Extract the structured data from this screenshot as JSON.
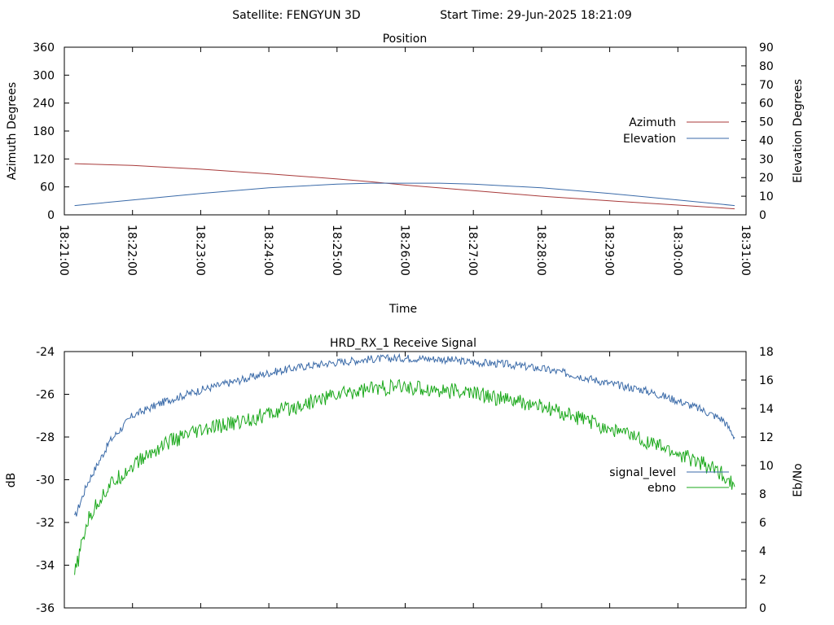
{
  "header": {
    "satellite_text": "Satellite: FENGYUN 3D",
    "start_time_text": "Start Time: 29-Jun-2025 18:21:09"
  },
  "chart_data": [
    {
      "type": "line",
      "title": "Position",
      "xlabel": "Time",
      "ylabel": "Azimuth Degrees",
      "y2label": "Elevation Degrees",
      "x_ticks": [
        "18:21:00",
        "18:22:00",
        "18:23:00",
        "18:24:00",
        "18:25:00",
        "18:26:00",
        "18:27:00",
        "18:28:00",
        "18:29:00",
        "18:30:00",
        "18:31:00"
      ],
      "xlim": [
        "18:21:00",
        "18:31:00"
      ],
      "ylim": [
        0,
        360
      ],
      "y_ticks": [
        0,
        60,
        120,
        180,
        240,
        300,
        360
      ],
      "y2lim": [
        0,
        90
      ],
      "y2_ticks": [
        0,
        10,
        20,
        30,
        40,
        50,
        60,
        70,
        80,
        90
      ],
      "grid": false,
      "legend": "right",
      "series": [
        {
          "name": "Azimuth",
          "axis": "y1",
          "color": "#a83a3a",
          "x": [
            "18:21:09",
            "18:22:00",
            "18:23:00",
            "18:24:00",
            "18:25:00",
            "18:25:30",
            "18:26:00",
            "18:27:00",
            "18:28:00",
            "18:29:00",
            "18:30:00",
            "18:30:50"
          ],
          "y": [
            110,
            106,
            98,
            88,
            77,
            71,
            64,
            52,
            40,
            30,
            21,
            13
          ]
        },
        {
          "name": "Elevation",
          "axis": "y2",
          "color": "#3a6aa8",
          "x": [
            "18:21:09",
            "18:22:00",
            "18:23:00",
            "18:24:00",
            "18:25:00",
            "18:25:30",
            "18:26:00",
            "18:26:30",
            "18:27:00",
            "18:28:00",
            "18:29:00",
            "18:30:00",
            "18:30:50"
          ],
          "y": [
            5,
            8,
            11.5,
            14.5,
            16.5,
            17,
            17,
            17,
            16.5,
            14.5,
            11.5,
            8,
            5
          ]
        }
      ]
    },
    {
      "type": "line",
      "title": "HRD_RX_1 Receive Signal",
      "xlabel": "",
      "ylabel": "dB",
      "y2label": "Eb/No",
      "xlim": [
        "18:21:00",
        "18:31:00"
      ],
      "ylim": [
        -36,
        -24
      ],
      "y_ticks": [
        -36,
        -34,
        -32,
        -30,
        -28,
        -26,
        -24
      ],
      "y2lim": [
        0,
        18
      ],
      "y2_ticks": [
        0,
        2,
        4,
        6,
        8,
        10,
        12,
        14,
        16,
        18
      ],
      "grid": false,
      "legend": "right",
      "series": [
        {
          "name": "signal_level",
          "axis": "y1",
          "color": "#3a6aa8",
          "x": [
            "18:21:09",
            "18:21:20",
            "18:21:30",
            "18:21:40",
            "18:22:00",
            "18:22:30",
            "18:23:00",
            "18:23:30",
            "18:24:00",
            "18:24:30",
            "18:25:00",
            "18:25:30",
            "18:26:00",
            "18:26:30",
            "18:27:00",
            "18:27:30",
            "18:28:00",
            "18:28:30",
            "18:29:00",
            "18:29:30",
            "18:30:00",
            "18:30:20",
            "18:30:40",
            "18:30:50"
          ],
          "y": [
            -31.8,
            -30.2,
            -29.2,
            -28.2,
            -27.0,
            -26.3,
            -25.8,
            -25.4,
            -25.0,
            -24.7,
            -24.5,
            -24.35,
            -24.3,
            -24.35,
            -24.5,
            -24.6,
            -24.8,
            -25.1,
            -25.5,
            -25.8,
            -26.3,
            -26.7,
            -27.2,
            -28.0
          ]
        },
        {
          "name": "ebno",
          "axis": "y2",
          "color": "#1aa81a",
          "x": [
            "18:21:09",
            "18:21:20",
            "18:21:30",
            "18:21:40",
            "18:22:00",
            "18:22:30",
            "18:23:00",
            "18:23:30",
            "18:24:00",
            "18:24:30",
            "18:25:00",
            "18:25:30",
            "18:26:00",
            "18:26:30",
            "18:27:00",
            "18:27:30",
            "18:28:00",
            "18:28:30",
            "18:29:00",
            "18:29:30",
            "18:30:00",
            "18:30:20",
            "18:30:40",
            "18:30:50"
          ],
          "y": [
            2.3,
            6.0,
            7.5,
            8.6,
            10.0,
            11.6,
            12.4,
            13.0,
            13.6,
            14.3,
            15.0,
            15.4,
            15.5,
            15.3,
            15.1,
            14.6,
            14.1,
            13.4,
            12.6,
            11.8,
            10.8,
            10.2,
            9.4,
            8.5
          ]
        }
      ]
    }
  ]
}
